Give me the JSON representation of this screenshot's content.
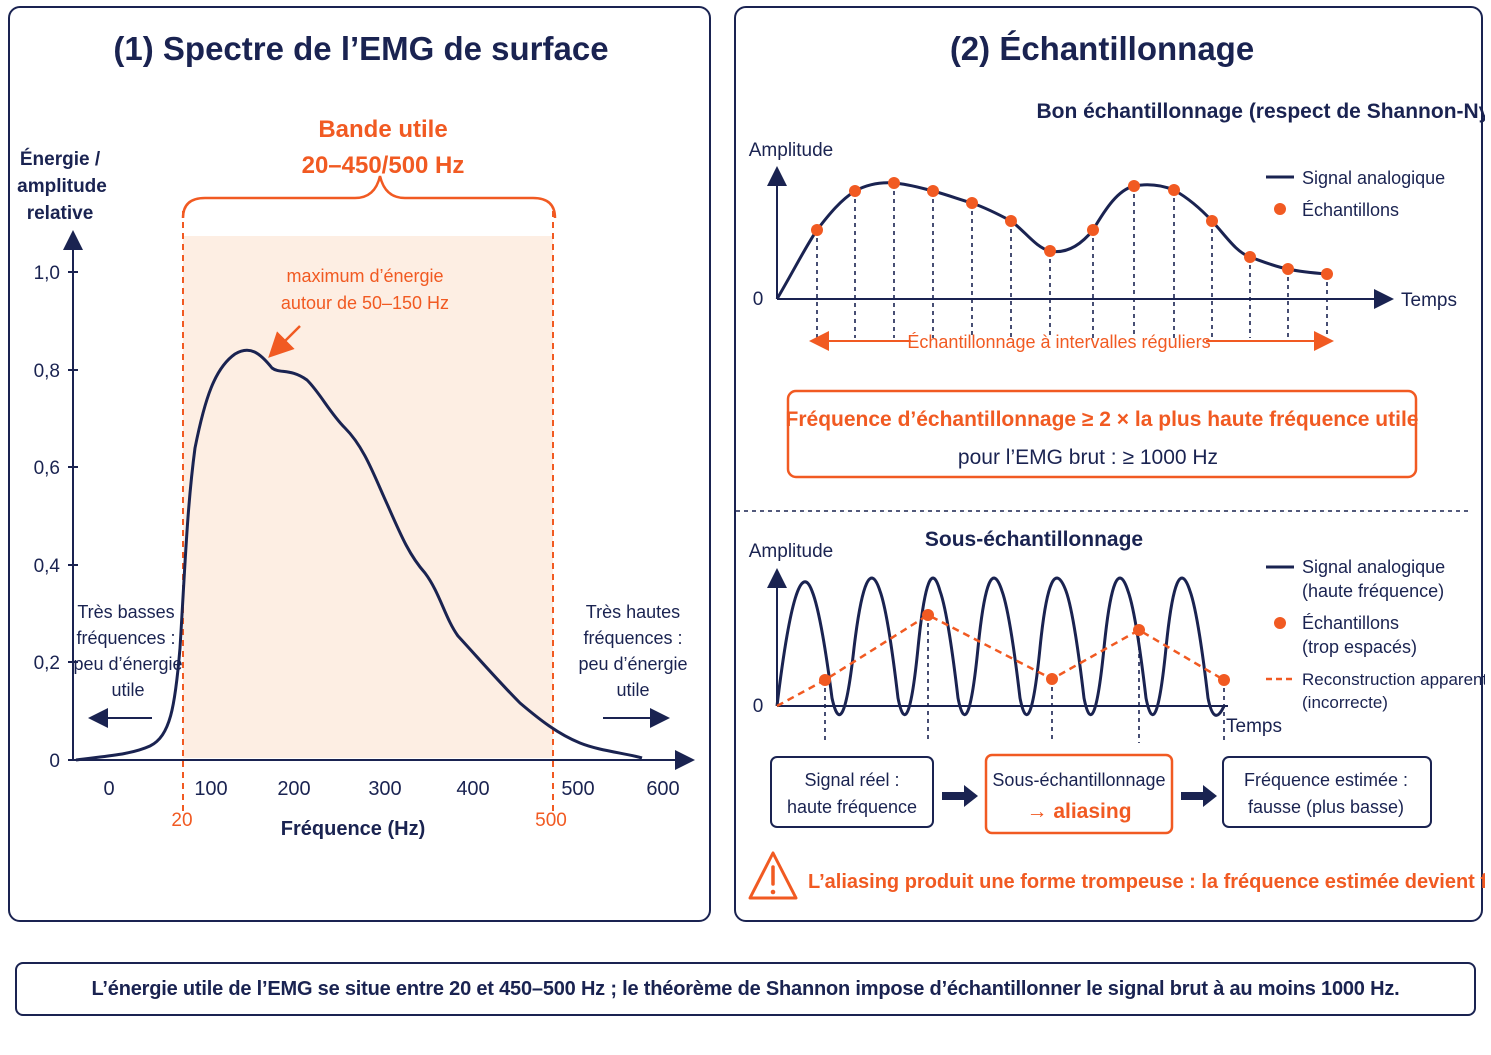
{
  "left_panel": {
    "title": "(1) Spectre de l’EMG de surface",
    "y_axis_label": [
      "Énergie /",
      "amplitude",
      "relative"
    ],
    "x_axis_label": "Fréquence (Hz)",
    "y_ticks": [
      "1,0",
      "0,8",
      "0,6",
      "0,4",
      "0,2",
      "0"
    ],
    "x_ticks": [
      "0",
      "100",
      "200",
      "300",
      "400",
      "500",
      "600"
    ],
    "band_title": "Bande utile",
    "band_range": "20–450/500 Hz",
    "band_low_label": "20",
    "band_high_label": "500",
    "peak_annotation": [
      "maximum d’énergie",
      "autour de 50–150 Hz"
    ],
    "low_freq_note": [
      "Très basses",
      "fréquences :",
      "peu d’énergie",
      "utile"
    ],
    "high_freq_note": [
      "Très hautes",
      "fréquences :",
      "peu d’énergie",
      "utile"
    ]
  },
  "right_panel": {
    "title": "(2) Échantillonnage",
    "good": {
      "heading": "Bon échantillonnage (respect de Shannon-Nyquist)",
      "y_label": "Amplitude",
      "zero": "0",
      "x_label": "Temps",
      "legend_signal": "Signal analogique",
      "legend_samples": "Échantillons",
      "interval_note": "Échantillonnage à intervalles réguliers"
    },
    "rule_box": {
      "line1": "Fréquence d’échantillonnage ≥ 2 × la plus haute fréquence utile",
      "line2": "pour l’EMG brut : ≥ 1000 Hz"
    },
    "under": {
      "heading": "Sous-échantillonnage",
      "y_label": "Amplitude",
      "zero": "0",
      "x_label": "Temps",
      "legend_signal": [
        "Signal analogique",
        "(haute fréquence)"
      ],
      "legend_samples": [
        "Échantillons",
        "(trop espacés)"
      ],
      "legend_reconstruction": [
        "Reconstruction apparente",
        "(incorrecte)"
      ]
    },
    "flow": {
      "box1": [
        "Signal réel :",
        "haute fréquence"
      ],
      "box2": [
        "Sous-échantillonnage",
        "→ aliasing"
      ],
      "box3": [
        "Fréquence estimée :",
        "fausse (plus basse)"
      ]
    },
    "warning": "L’aliasing produit une forme trompeuse : la fréquence estimée devient fausse."
  },
  "footer": "L’énergie utile de l’EMG se situe entre 20 et 450–500 Hz ; le théorème de Shannon impose d’échantillonner le signal brut à au moins 1000 Hz.",
  "colors": {
    "navy": "#1a2351",
    "orange": "#f15a22",
    "band_fill": "#fdeee3"
  }
}
